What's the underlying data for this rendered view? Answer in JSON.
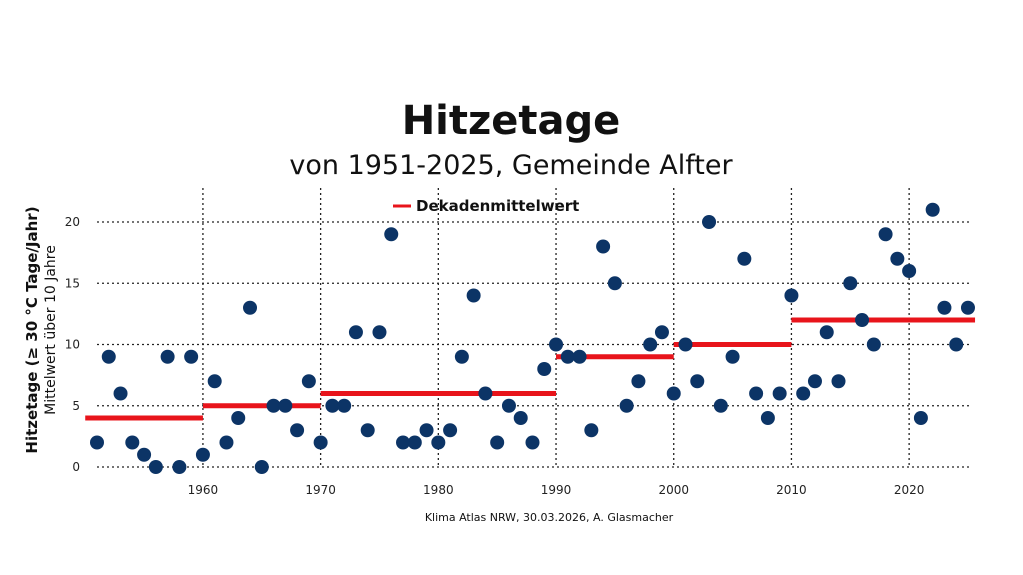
{
  "chart_data": {
    "type": "scatter",
    "title": "Hitzetage",
    "subtitle": "von 1951-2025, Gemeinde Alfter",
    "ylabel": "Hitzetage (≥ 30 °C Tage/Jahr)",
    "ylabel2": "Mittelwert über 10 Jahre",
    "xlabel": "",
    "source": "Klima Atlas NRW, 30.03.2026, A. Glasmacher",
    "xlim": [
      1950,
      2026
    ],
    "ylim": [
      0,
      21
    ],
    "x_ticks": [
      1960,
      1970,
      1980,
      1990,
      2000,
      2010,
      2020
    ],
    "y_ticks": [
      0,
      5,
      10,
      15,
      20
    ],
    "grid": true,
    "grid_style": "dotted",
    "legend": {
      "position": "top-center",
      "entries": [
        {
          "label": "Dekadenmittelwert",
          "color": "#e8141b"
        }
      ]
    },
    "point_color": "#0c3466",
    "mean_color": "#e8141b",
    "years": [
      1951,
      1952,
      1953,
      1954,
      1955,
      1956,
      1957,
      1958,
      1959,
      1960,
      1961,
      1962,
      1963,
      1964,
      1965,
      1966,
      1967,
      1968,
      1969,
      1970,
      1971,
      1972,
      1973,
      1974,
      1975,
      1976,
      1977,
      1978,
      1979,
      1980,
      1981,
      1982,
      1983,
      1984,
      1985,
      1986,
      1987,
      1988,
      1989,
      1990,
      1991,
      1992,
      1993,
      1994,
      1995,
      1996,
      1997,
      1998,
      1999,
      2000,
      2001,
      2002,
      2003,
      2004,
      2005,
      2006,
      2007,
      2008,
      2009,
      2010,
      2011,
      2012,
      2013,
      2014,
      2015,
      2016,
      2017,
      2018,
      2019,
      2020,
      2021,
      2022,
      2023,
      2024,
      2025
    ],
    "values": [
      2,
      9,
      6,
      2,
      1,
      0,
      9,
      0,
      9,
      1,
      7,
      2,
      4,
      13,
      0,
      5,
      5,
      3,
      7,
      2,
      5,
      5,
      11,
      3,
      11,
      19,
      2,
      2,
      3,
      2,
      3,
      9,
      14,
      6,
      2,
      5,
      4,
      2,
      8,
      10,
      9,
      9,
      3,
      18,
      15,
      5,
      7,
      10,
      11,
      6,
      10,
      7,
      20,
      5,
      9,
      17,
      6,
      4,
      6,
      14,
      6,
      7,
      11,
      7,
      15,
      12,
      10,
      19,
      17,
      16,
      4,
      21,
      13,
      10,
      13
    ],
    "decade_means": [
      {
        "from": 1950,
        "to": 1960,
        "value": 4
      },
      {
        "from": 1960,
        "to": 1970,
        "value": 5
      },
      {
        "from": 1970,
        "to": 1990,
        "value": 6
      },
      {
        "from": 1990,
        "to": 2000,
        "value": 9
      },
      {
        "from": 2000,
        "to": 2010,
        "value": 10
      },
      {
        "from": 2010,
        "to": 2025.6,
        "value": 12
      }
    ]
  }
}
